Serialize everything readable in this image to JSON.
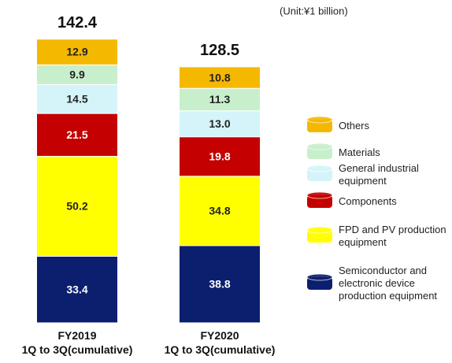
{
  "chart_data": {
    "type": "stacked_bar",
    "unit": "(Unit:¥1 billion)",
    "categories": [
      "FY2019\n1Q to 3Q(cumulative)",
      "FY2020\n1Q to 3Q(cumulative)"
    ],
    "totals": [
      142.4,
      128.5
    ],
    "series": [
      {
        "name": "Semiconductor and electronic device production equipment",
        "color": "#0c1f6e",
        "values": [
          33.4,
          38.8
        ]
      },
      {
        "name": "FPD and PV production equipment",
        "color": "#ffff00",
        "values": [
          50.2,
          34.8
        ]
      },
      {
        "name": "Components",
        "color": "#c40000",
        "values": [
          21.5,
          19.8
        ]
      },
      {
        "name": "General industrial equipment",
        "color": "#d4f4fa",
        "values": [
          14.5,
          13
        ],
        "value_labels": [
          "14.5",
          "13.0"
        ]
      },
      {
        "name": "Materials",
        "color": "#c8efcb",
        "values": [
          9.9,
          11.3
        ]
      },
      {
        "name": "Others",
        "color": "#f5b800",
        "values": [
          12.9,
          10.8
        ]
      }
    ]
  }
}
